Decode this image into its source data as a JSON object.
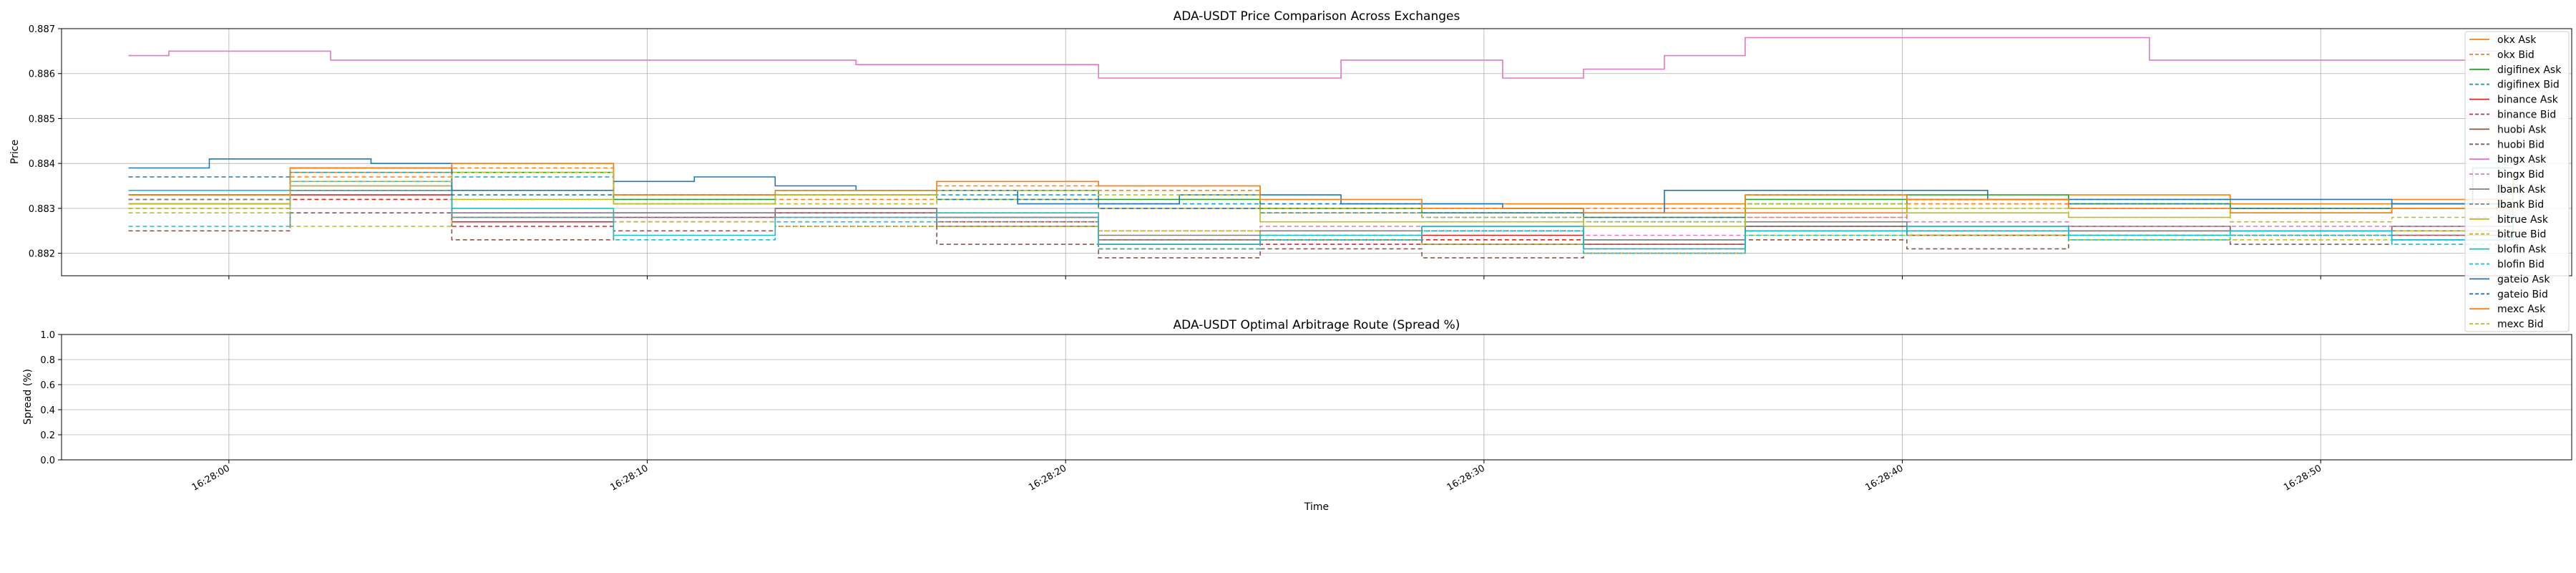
{
  "chart_data": [
    {
      "type": "line",
      "title": "ADA-USDT Price Comparison Across Exchanges",
      "xlabel": "",
      "ylabel": "Price",
      "ylim": [
        0.8815,
        0.887
      ],
      "xlim": [
        "16:27:56",
        "16:28:56"
      ],
      "yticks": [
        "0.882",
        "0.883",
        "0.884",
        "0.885",
        "0.886",
        "0.887"
      ],
      "ytick_values": [
        0.882,
        0.883,
        0.884,
        0.885,
        0.886,
        0.887
      ],
      "grid": true,
      "legend_position": "upper-right",
      "series": [
        {
          "name": "okx Ask",
          "color": "#ff7f0e",
          "dash": false,
          "x": [
            0,
            4,
            8,
            12,
            16,
            20,
            24,
            28,
            32,
            36,
            40,
            44,
            48,
            52,
            56,
            59
          ],
          "y": [
            0.8831,
            0.8838,
            0.884,
            0.8833,
            0.8833,
            0.8836,
            0.8835,
            0.883,
            0.8831,
            0.8831,
            0.8829,
            0.8832,
            0.8833,
            0.8831,
            0.8832,
            0.8838
          ]
        },
        {
          "name": "okx Bid",
          "color": "#ff7f0e",
          "dash": true,
          "x": [
            0,
            4,
            8,
            12,
            16,
            20,
            24,
            28,
            32,
            36,
            40,
            44,
            48,
            52,
            56,
            59
          ],
          "y": [
            0.883,
            0.8837,
            0.8839,
            0.8832,
            0.8832,
            0.8835,
            0.8834,
            0.8829,
            0.883,
            0.883,
            0.8828,
            0.8831,
            0.8832,
            0.883,
            0.8831,
            0.8837
          ]
        },
        {
          "name": "digifinex Ask",
          "color": "#2ca02c",
          "dash": false,
          "x": [
            0,
            4,
            8,
            12,
            16,
            20,
            24,
            28,
            32,
            36,
            40,
            44,
            48,
            52,
            56,
            59
          ],
          "y": [
            0.8833,
            0.8839,
            0.8838,
            0.8832,
            0.8834,
            0.8834,
            0.8832,
            0.883,
            0.8829,
            0.8828,
            0.8832,
            0.8833,
            0.8831,
            0.883,
            0.8831,
            0.8834
          ]
        },
        {
          "name": "digifinex Bid",
          "color": "#17a2b8",
          "dash": true,
          "x": [
            0,
            4,
            8,
            12,
            16,
            20,
            24,
            28,
            32,
            36,
            40,
            44,
            48,
            52,
            56,
            59
          ],
          "y": [
            0.8832,
            0.8838,
            0.8837,
            0.8831,
            0.8833,
            0.8833,
            0.8831,
            0.8829,
            0.8828,
            0.8827,
            0.8831,
            0.8832,
            0.883,
            0.8829,
            0.883,
            0.8833
          ]
        },
        {
          "name": "binance Ask",
          "color": "#d62728",
          "dash": false,
          "x": [
            0,
            4,
            8,
            12,
            16,
            20,
            24,
            28,
            32,
            36,
            40,
            44,
            48,
            52,
            56,
            59
          ],
          "y": [
            0.8833,
            0.8833,
            0.8827,
            0.8828,
            0.8829,
            0.8828,
            0.8822,
            0.8823,
            0.8824,
            0.8822,
            0.8826,
            0.8825,
            0.8825,
            0.8825,
            0.8824,
            0.8832
          ]
        },
        {
          "name": "binance Bid",
          "color": "#d62728",
          "dash": true,
          "x": [
            0,
            4,
            8,
            12,
            16,
            20,
            24,
            28,
            32,
            36,
            40,
            44,
            48,
            52,
            56,
            59
          ],
          "y": [
            0.8832,
            0.8832,
            0.8826,
            0.8827,
            0.8828,
            0.8827,
            0.8821,
            0.8822,
            0.8823,
            0.8821,
            0.8825,
            0.8824,
            0.8824,
            0.8824,
            0.8823,
            0.8831
          ]
        },
        {
          "name": "huobi Ask",
          "color": "#8c564b",
          "dash": false,
          "x": [
            0,
            4,
            8,
            12,
            16,
            20,
            24,
            28,
            32,
            36,
            40,
            44,
            48,
            52,
            56,
            59
          ],
          "y": [
            0.8831,
            0.8834,
            0.8828,
            0.8829,
            0.883,
            0.8826,
            0.8823,
            0.8823,
            0.8822,
            0.8823,
            0.8826,
            0.8824,
            0.8826,
            0.8825,
            0.8826,
            0.883
          ]
        },
        {
          "name": "huobi Bid",
          "color": "#8c564b",
          "dash": true,
          "x": [
            0,
            4,
            8,
            12,
            16,
            20,
            24,
            28,
            32,
            36,
            40,
            44,
            48,
            52,
            56,
            59
          ],
          "y": [
            0.8825,
            0.8829,
            0.8823,
            0.8825,
            0.8826,
            0.8822,
            0.8819,
            0.8821,
            0.8819,
            0.882,
            0.8823,
            0.8821,
            0.8823,
            0.8822,
            0.8823,
            0.8828
          ]
        },
        {
          "name": "bingx Ask",
          "color": "#e377c2",
          "dash": false,
          "x": [
            0,
            1,
            2,
            4,
            5,
            6,
            8,
            10,
            12,
            14,
            16,
            18,
            20,
            22,
            24,
            26,
            28,
            30,
            31,
            32,
            34,
            36,
            38,
            40,
            42,
            44,
            46,
            48,
            50,
            52,
            54,
            56,
            58,
            59
          ],
          "y": [
            0.8864,
            0.8865,
            0.8865,
            0.8865,
            0.8863,
            0.8863,
            0.8863,
            0.8863,
            0.8863,
            0.8863,
            0.8863,
            0.8862,
            0.8862,
            0.8862,
            0.8859,
            0.8859,
            0.8859,
            0.8863,
            0.8863,
            0.8863,
            0.8859,
            0.8861,
            0.8864,
            0.8868,
            0.8868,
            0.8868,
            0.8868,
            0.8868,
            0.8863,
            0.8863,
            0.8863,
            0.8863,
            0.8865,
            0.8865
          ]
        },
        {
          "name": "bingx Bid",
          "color": "#e377c2",
          "dash": true,
          "x": [
            0,
            4,
            8,
            12,
            16,
            20,
            24,
            28,
            32,
            36,
            40,
            44,
            48,
            52,
            56,
            59
          ],
          "y": [
            0.8832,
            0.8834,
            0.8829,
            0.8828,
            0.883,
            0.8829,
            0.8825,
            0.8826,
            0.8825,
            0.8824,
            0.8828,
            0.8827,
            0.8826,
            0.8826,
            0.8826,
            0.8833
          ]
        },
        {
          "name": "lbank Ask",
          "color": "#7f7f7f",
          "dash": false,
          "x": [
            0,
            4,
            8,
            12,
            16,
            20,
            24,
            28,
            32,
            36,
            40,
            44,
            48,
            52,
            56,
            59
          ],
          "y": [
            0.8833,
            0.8835,
            0.8829,
            0.8829,
            0.883,
            0.8828,
            0.8824,
            0.8825,
            0.8826,
            0.8823,
            0.8827,
            0.8826,
            0.8825,
            0.8825,
            0.8825,
            0.8832
          ]
        },
        {
          "name": "lbank Bid",
          "color": "#7f7f7f",
          "dash": true,
          "x": [
            0,
            4,
            8,
            12,
            16,
            20,
            24,
            28,
            32,
            36,
            40,
            44,
            48,
            52,
            56,
            59
          ],
          "y": [
            0.8832,
            0.8834,
            0.8828,
            0.8828,
            0.8829,
            0.8827,
            0.8823,
            0.8824,
            0.8825,
            0.8822,
            0.8826,
            0.8825,
            0.8824,
            0.8824,
            0.8824,
            0.8831
          ]
        },
        {
          "name": "bitrue Ask",
          "color": "#bcbd22",
          "dash": false,
          "x": [
            0,
            4,
            8,
            12,
            16,
            20,
            24,
            28,
            32,
            36,
            40,
            44,
            48,
            52,
            56,
            59
          ],
          "y": [
            0.8831,
            0.8835,
            0.8832,
            0.8831,
            0.8833,
            0.8832,
            0.883,
            0.8827,
            0.8827,
            0.8826,
            0.883,
            0.8829,
            0.8828,
            0.8829,
            0.883,
            0.8832
          ]
        },
        {
          "name": "bitrue Bid",
          "color": "#bcbd22",
          "dash": true,
          "x": [
            0,
            4,
            8,
            12,
            16,
            20,
            24,
            28,
            32,
            36,
            40,
            44,
            48,
            52,
            56,
            59
          ],
          "y": [
            0.883,
            0.8826,
            0.8828,
            0.8827,
            0.8826,
            0.8826,
            0.8825,
            0.8823,
            0.8822,
            0.882,
            0.8824,
            0.8824,
            0.8823,
            0.8823,
            0.8825,
            0.883
          ]
        },
        {
          "name": "blofin Ask",
          "color": "#17becf",
          "dash": false,
          "x": [
            0,
            4,
            8,
            12,
            16,
            20,
            24,
            28,
            32,
            36,
            40,
            44,
            48,
            52,
            56,
            59
          ],
          "y": [
            0.8834,
            0.8836,
            0.883,
            0.8824,
            0.8828,
            0.8829,
            0.8822,
            0.8824,
            0.8826,
            0.8821,
            0.8825,
            0.8826,
            0.8824,
            0.8825,
            0.8823,
            0.883
          ]
        },
        {
          "name": "blofin Bid",
          "color": "#17becf",
          "dash": true,
          "x": [
            0,
            4,
            8,
            12,
            16,
            20,
            24,
            28,
            32,
            36,
            40,
            44,
            48,
            52,
            56,
            59
          ],
          "y": [
            0.8826,
            0.8834,
            0.8828,
            0.8823,
            0.8827,
            0.8828,
            0.8821,
            0.8823,
            0.8825,
            0.882,
            0.8824,
            0.8825,
            0.8823,
            0.8824,
            0.8822,
            0.883
          ]
        },
        {
          "name": "gateio Ask",
          "color": "#1f77b4",
          "dash": false,
          "x": [
            0,
            2,
            4,
            6,
            8,
            10,
            12,
            14,
            16,
            18,
            20,
            22,
            24,
            26,
            28,
            30,
            32,
            34,
            36,
            38,
            40,
            42,
            44,
            46,
            48,
            50,
            52,
            54,
            56,
            58,
            59
          ],
          "y": [
            0.8839,
            0.8841,
            0.8841,
            0.884,
            0.8834,
            0.8834,
            0.8836,
            0.8837,
            0.8835,
            0.8834,
            0.8834,
            0.8831,
            0.8831,
            0.8833,
            0.8833,
            0.8831,
            0.8831,
            0.883,
            0.8829,
            0.8834,
            0.8834,
            0.8834,
            0.8834,
            0.8832,
            0.8832,
            0.8832,
            0.8832,
            0.8832,
            0.8831,
            0.8839,
            0.8839
          ]
        },
        {
          "name": "gateio Bid",
          "color": "#1f77b4",
          "dash": true,
          "x": [
            0,
            4,
            8,
            12,
            16,
            20,
            24,
            28,
            32,
            36,
            40,
            44,
            48,
            52,
            56,
            59
          ],
          "y": [
            0.8837,
            0.8839,
            0.8833,
            0.8833,
            0.8834,
            0.8832,
            0.883,
            0.8831,
            0.8829,
            0.8828,
            0.8833,
            0.8832,
            0.8831,
            0.883,
            0.8831,
            0.8837
          ]
        },
        {
          "name": "mexc Ask",
          "color": "#ff7f0e",
          "dash": false,
          "x": [
            0,
            4,
            8,
            12,
            16,
            20,
            24,
            28,
            32,
            36,
            40,
            44,
            48,
            52,
            56,
            59
          ],
          "y": [
            0.8833,
            0.8839,
            0.884,
            0.8833,
            0.8834,
            0.8836,
            0.8835,
            0.8832,
            0.883,
            0.8829,
            0.8833,
            0.8832,
            0.883,
            0.8829,
            0.883,
            0.8838
          ]
        },
        {
          "name": "mexc Bid",
          "color": "#bcbd22",
          "dash": true,
          "x": [
            0,
            4,
            8,
            12,
            16,
            20,
            24,
            28,
            32,
            36,
            40,
            44,
            48,
            52,
            56,
            59
          ],
          "y": [
            0.8829,
            0.8836,
            0.8838,
            0.8831,
            0.8831,
            0.8834,
            0.8833,
            0.883,
            0.8828,
            0.8827,
            0.8831,
            0.883,
            0.8828,
            0.8827,
            0.8828,
            0.8836
          ]
        }
      ]
    },
    {
      "type": "line",
      "title": "ADA-USDT Optimal Arbitrage Route (Spread %)",
      "xlabel": "Time",
      "ylabel": "Spread (%)",
      "ylim": [
        0.0,
        1.0
      ],
      "yticks": [
        "0.0",
        "0.2",
        "0.4",
        "0.6",
        "0.8",
        "1.0"
      ],
      "ytick_values": [
        0.0,
        0.2,
        0.4,
        0.6,
        0.8,
        1.0
      ],
      "xticks": [
        "16:28:00",
        "16:28:10",
        "16:28:20",
        "16:28:30",
        "16:28:40",
        "16:28:50"
      ],
      "grid": true,
      "series": []
    }
  ]
}
